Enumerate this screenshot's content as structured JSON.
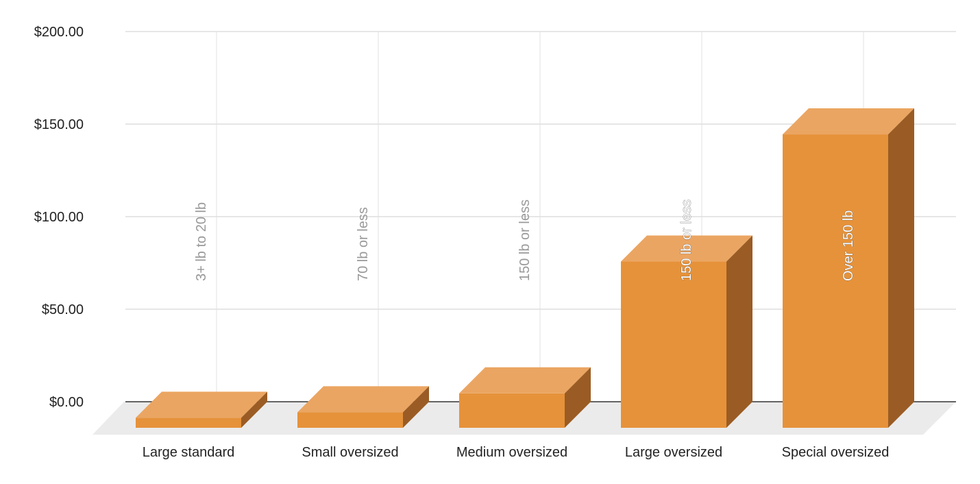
{
  "chart_data": {
    "type": "bar",
    "style": "3d-column",
    "categories": [
      "Large standard",
      "Small oversized",
      "Medium oversized",
      "Large oversized",
      "Special oversized"
    ],
    "values": [
      5.4,
      8.4,
      18.6,
      89.8,
      158.5
    ],
    "data_labels": [
      "3+ lb to 20 lb",
      "70 lb or less",
      "150 lb or less",
      "150 lb or less",
      "Over 150 lb"
    ],
    "y_tick_labels": [
      "$0.00",
      "$50.00",
      "$100.00",
      "$150.00",
      "$200.00"
    ],
    "ylim": [
      0,
      200
    ],
    "y_ticks": [
      0,
      50,
      100,
      150,
      200
    ],
    "grid": true,
    "legend": "none",
    "title": "",
    "xlabel": "",
    "ylabel": ""
  },
  "colors": {
    "bar_front": "#e6923a",
    "bar_top": "#eba562",
    "bar_side": "#9a5c24",
    "floor": "#ebebeb",
    "grid": "#cccccc",
    "baseline": "#333333",
    "data_label": "#999999",
    "data_label_inside": "#ffffff"
  }
}
